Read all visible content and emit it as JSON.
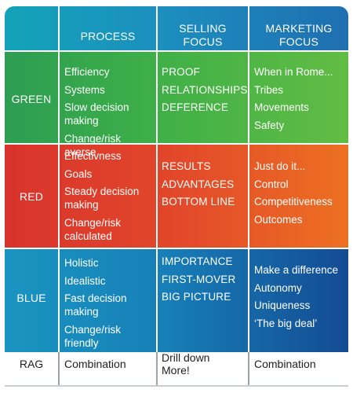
{
  "header": {
    "columns": [
      "PROCESS",
      "SELLING\nFOCUS",
      "MARKETING\nFOCUS"
    ]
  },
  "rows": {
    "green": {
      "label": "GREEN",
      "process": [
        "Efficiency",
        "Systems",
        "Slow decision making",
        "Change/risk averse"
      ],
      "selling": [
        "PROOF",
        "RELATIONSHIPS",
        "DEFERENCE"
      ],
      "marketing": [
        "When in Rome...",
        "Tribes",
        "Movements",
        "Safety"
      ]
    },
    "red": {
      "label": "RED",
      "process": [
        "Effectivness",
        "Goals",
        "Steady decision\nmaking",
        "Change/risk\ncalculated"
      ],
      "selling": [
        "RESULTS",
        "ADVANTAGES",
        "BOTTOM LINE"
      ],
      "marketing": [
        "Just do it...",
        "Control",
        "Competitiveness",
        "Outcomes"
      ]
    },
    "blue": {
      "label": "BLUE",
      "process": [
        "Holistic",
        "Idealistic",
        "Fast decision making",
        "Change/risk\nfriendly"
      ],
      "selling": [
        "IMPORTANCE",
        "FIRST-MOVER",
        "BIG PICTURE"
      ],
      "marketing": [
        "Make a difference",
        "Autonomy",
        "Uniqueness",
        "‘The big deal’"
      ]
    },
    "rag": {
      "label": "RAG",
      "process": "Combination",
      "selling": "Drill down\nMore!",
      "marketing": "Combination"
    }
  },
  "colors": {
    "green": "#3fb047",
    "red": "#e2482a",
    "blue": "#1780b8",
    "header": "#1c8fbf"
  }
}
